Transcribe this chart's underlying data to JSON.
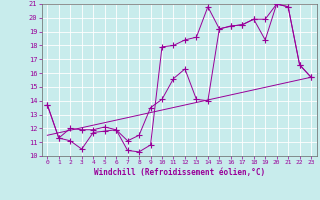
{
  "xlabel": "Windchill (Refroidissement éolien,°C)",
  "background_color": "#c8ecec",
  "grid_color": "#b0d8d8",
  "line_color": "#990099",
  "xlim": [
    -0.5,
    23.5
  ],
  "ylim": [
    10,
    21
  ],
  "yticks": [
    10,
    11,
    12,
    13,
    14,
    15,
    16,
    17,
    18,
    19,
    20,
    21
  ],
  "xticks": [
    0,
    1,
    2,
    3,
    4,
    5,
    6,
    7,
    8,
    9,
    10,
    11,
    12,
    13,
    14,
    15,
    16,
    17,
    18,
    19,
    20,
    21,
    22,
    23
  ],
  "series1_x": [
    0,
    1,
    2,
    3,
    4,
    5,
    6,
    7,
    8,
    9,
    10,
    11,
    12,
    13,
    14,
    15,
    16,
    17,
    18,
    19,
    20,
    21,
    22,
    23
  ],
  "series1_y": [
    13.7,
    11.3,
    11.1,
    10.5,
    11.7,
    11.8,
    11.9,
    10.4,
    10.3,
    10.8,
    17.9,
    18.0,
    18.4,
    18.6,
    20.8,
    19.2,
    19.4,
    19.5,
    19.9,
    18.4,
    21.0,
    20.8,
    16.6,
    15.7
  ],
  "series2_x": [
    0,
    1,
    2,
    3,
    4,
    5,
    6,
    7,
    8,
    9,
    10,
    11,
    12,
    13,
    14,
    15,
    16,
    17,
    18,
    19,
    20,
    21,
    22,
    23
  ],
  "series2_y": [
    13.7,
    11.3,
    12.0,
    11.9,
    11.9,
    12.1,
    11.9,
    11.1,
    11.5,
    13.5,
    14.1,
    15.6,
    16.3,
    14.1,
    14.0,
    19.2,
    19.4,
    19.5,
    19.9,
    19.9,
    21.0,
    20.8,
    16.6,
    15.7
  ],
  "trend_x": [
    0,
    23
  ],
  "trend_y": [
    11.5,
    15.7
  ]
}
